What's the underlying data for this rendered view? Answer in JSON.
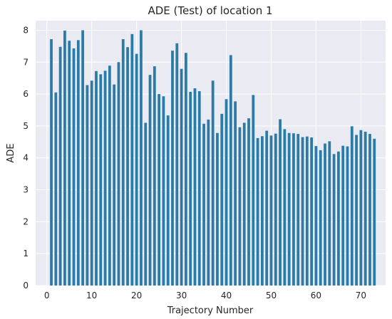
{
  "chart_data": {
    "type": "bar",
    "title": "ADE (Test) of location 1",
    "xlabel": "Trajectory Number",
    "ylabel": "ADE",
    "xlim": [
      -2.5,
      75.5
    ],
    "ylim": [
      0,
      8.3
    ],
    "xticks": [
      0,
      10,
      20,
      30,
      40,
      50,
      60,
      70
    ],
    "yticks": [
      0,
      1,
      2,
      3,
      4,
      5,
      6,
      7,
      8
    ],
    "grid": true,
    "legend": "none",
    "x": [
      1,
      2,
      3,
      4,
      5,
      6,
      7,
      8,
      9,
      10,
      11,
      12,
      13,
      14,
      15,
      16,
      17,
      18,
      19,
      20,
      21,
      22,
      23,
      24,
      25,
      26,
      27,
      28,
      29,
      30,
      31,
      32,
      33,
      34,
      35,
      36,
      37,
      38,
      39,
      40,
      41,
      42,
      43,
      44,
      45,
      46,
      47,
      48,
      49,
      50,
      51,
      52,
      53,
      54,
      55,
      56,
      57,
      58,
      59,
      60,
      61,
      62,
      63,
      64,
      65,
      66,
      67,
      68,
      69,
      70,
      71,
      72,
      73
    ],
    "values": [
      7.72,
      6.05,
      7.48,
      7.99,
      7.67,
      7.43,
      7.69,
      8.0,
      6.28,
      6.42,
      6.72,
      6.62,
      6.73,
      6.89,
      6.3,
      7.0,
      7.72,
      7.47,
      7.88,
      7.26,
      8.0,
      5.1,
      6.6,
      6.87,
      6.0,
      5.93,
      5.33,
      7.36,
      7.59,
      6.79,
      7.29,
      6.07,
      6.18,
      6.09,
      5.07,
      5.2,
      6.42,
      4.78,
      5.38,
      5.84,
      7.22,
      5.77,
      4.96,
      5.1,
      5.24,
      5.97,
      4.62,
      4.68,
      4.85,
      4.7,
      4.76,
      5.21,
      4.9,
      4.78,
      4.77,
      4.75,
      4.65,
      4.67,
      4.64,
      4.37,
      4.24,
      4.45,
      4.52,
      4.12,
      4.2,
      4.38,
      4.36,
      4.99,
      4.72,
      4.87,
      4.82,
      4.75,
      4.6
    ],
    "colors": {
      "bar": "#2a7ba6",
      "plot_bg": "#eaeaf2",
      "grid": "#ffffff",
      "text": "#262626"
    }
  }
}
